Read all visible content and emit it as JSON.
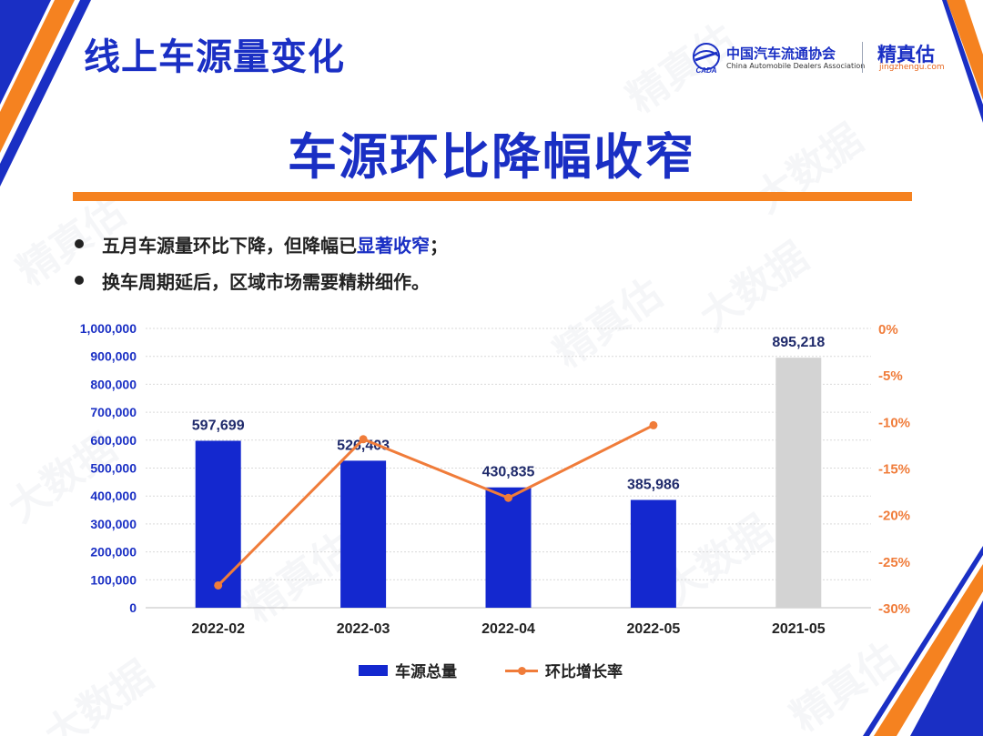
{
  "header": {
    "page_title": "线上车源量变化",
    "main_title": "车源环比降幅收窄"
  },
  "logos": {
    "cada_cn": "中国汽车流通协会",
    "cada_en": "China Automobile Dealers Association",
    "cada_mark": "CADA",
    "jz_cn": "精真估",
    "jz_en": "jingzhengu.com"
  },
  "watermarks": [
    "精真估",
    "大数据"
  ],
  "bullets": [
    {
      "before": "五月车源量环比下降，但降幅已",
      "highlight": "显著收窄",
      "after": "；"
    },
    {
      "before": "换车周期延后，区域市场需要精耕细作。",
      "highlight": "",
      "after": ""
    }
  ],
  "legend": {
    "bar_label": "车源总量",
    "line_label": "环比增长率"
  },
  "colors": {
    "brand_blue": "#1a2fc4",
    "bar_blue": "#1428cf",
    "bar_gray": "#d3d3d3",
    "line_orange": "#f07c3a",
    "accent_orange": "#f58220"
  },
  "chart_data": {
    "type": "bar",
    "categories": [
      "2022-02",
      "2022-03",
      "2022-04",
      "2022-05",
      "2021-05"
    ],
    "series": [
      {
        "name": "车源总量",
        "type": "bar",
        "axis": "left",
        "values": [
          597699,
          526403,
          430835,
          385986,
          895218
        ],
        "labels": [
          "597,699",
          "526,403",
          "430,835",
          "385,986",
          "895,218"
        ],
        "bar_colors": [
          "#1428cf",
          "#1428cf",
          "#1428cf",
          "#1428cf",
          "#d3d3d3"
        ]
      },
      {
        "name": "环比增长率",
        "type": "line",
        "axis": "right",
        "values": [
          -0.276,
          -0.119,
          -0.182,
          -0.104,
          null
        ]
      }
    ],
    "y_left": {
      "min": 0,
      "max": 1000000,
      "ticks": [
        "0",
        "100,000",
        "200,000",
        "300,000",
        "400,000",
        "500,000",
        "600,000",
        "700,000",
        "800,000",
        "900,000",
        "1,000,000"
      ]
    },
    "y_right": {
      "min": -0.3,
      "max": 0,
      "ticks": [
        "-30%",
        "-25%",
        "-20%",
        "-15%",
        "-10%",
        "-5%",
        "0%"
      ]
    },
    "grid": true,
    "legend_position": "bottom"
  }
}
